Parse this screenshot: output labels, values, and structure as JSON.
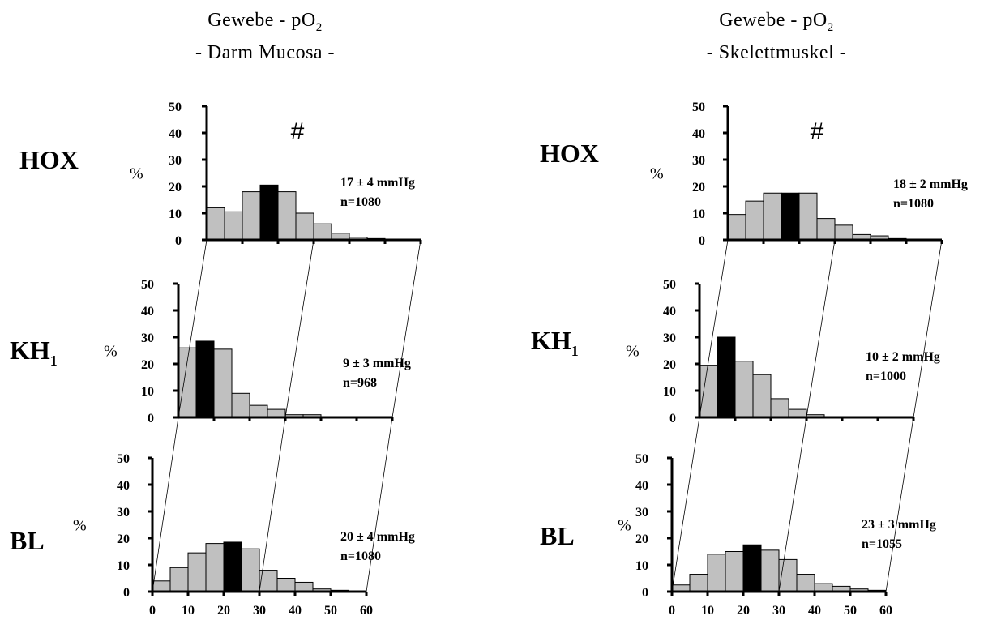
{
  "columns": [
    {
      "title": "Gewebe - pO",
      "title_sub": "2",
      "subtitle": "- Darm Mucosa -"
    },
    {
      "title": "Gewebe - pO",
      "title_sub": "2",
      "subtitle": "- Skelettmuskel -"
    }
  ],
  "percent_label": "%",
  "colors": {
    "bar": "#c0c0c0",
    "median_bar": "#000000",
    "axis": "#000000"
  },
  "chart_data": [
    {
      "type": "bar",
      "column": 0,
      "row_label": "HOX",
      "row_label_sub": "",
      "bin_edges": [
        0,
        5,
        10,
        15,
        20,
        25,
        30,
        35,
        40,
        45,
        50,
        55,
        60
      ],
      "values": [
        12,
        10.5,
        18,
        20.5,
        18,
        10,
        6,
        2.5,
        1,
        0.5,
        0,
        0
      ],
      "median_bin": 3,
      "annotation": "17 ± 4 mmHg",
      "n": "n=1080",
      "marker": "#",
      "y_ticks": [
        0,
        10,
        20,
        30,
        40,
        50
      ],
      "x_ticks": [],
      "ylim": [
        0,
        50
      ],
      "xlim": [
        0,
        60
      ],
      "ylabel": "%"
    },
    {
      "type": "bar",
      "column": 0,
      "row_label": "KH",
      "row_label_sub": "1",
      "bin_edges": [
        0,
        5,
        10,
        15,
        20,
        25,
        30,
        35,
        40,
        45,
        50,
        55,
        60
      ],
      "values": [
        26,
        28.5,
        25.5,
        9,
        4.5,
        3,
        1,
        1,
        0,
        0,
        0,
        0
      ],
      "median_bin": 1,
      "annotation": "9 ± 3 mmHg",
      "n": "n=968",
      "marker": "",
      "y_ticks": [
        0,
        10,
        20,
        30,
        40,
        50
      ],
      "x_ticks": [],
      "ylim": [
        0,
        50
      ],
      "xlim": [
        0,
        60
      ],
      "ylabel": "%"
    },
    {
      "type": "bar",
      "column": 0,
      "row_label": "BL",
      "row_label_sub": "",
      "bin_edges": [
        0,
        5,
        10,
        15,
        20,
        25,
        30,
        35,
        40,
        45,
        50,
        55,
        60
      ],
      "values": [
        4,
        9,
        14.5,
        18,
        18.5,
        16,
        8,
        5,
        3.5,
        1,
        0.5,
        0
      ],
      "median_bin": 4,
      "annotation": "20 ± 4 mmHg",
      "n": "n=1080",
      "marker": "",
      "y_ticks": [
        0,
        10,
        20,
        30,
        40,
        50
      ],
      "x_ticks": [
        0,
        10,
        20,
        30,
        40,
        50,
        60
      ],
      "ylim": [
        0,
        50
      ],
      "xlim": [
        0,
        60
      ],
      "ylabel": "%"
    },
    {
      "type": "bar",
      "column": 1,
      "row_label": "HOX",
      "row_label_sub": "",
      "bin_edges": [
        0,
        5,
        10,
        15,
        20,
        25,
        30,
        35,
        40,
        45,
        50,
        55,
        60
      ],
      "values": [
        9.5,
        14.5,
        17.5,
        17.5,
        17.5,
        8,
        5.5,
        2,
        1.5,
        0.5,
        0.3,
        0
      ],
      "median_bin": 3,
      "annotation": "18 ± 2 mmHg",
      "n": "n=1080",
      "marker": "#",
      "y_ticks": [
        0,
        10,
        20,
        30,
        40,
        50
      ],
      "x_ticks": [],
      "ylim": [
        0,
        50
      ],
      "xlim": [
        0,
        60
      ],
      "ylabel": "%"
    },
    {
      "type": "bar",
      "column": 1,
      "row_label": "KH",
      "row_label_sub": "1",
      "bin_edges": [
        0,
        5,
        10,
        15,
        20,
        25,
        30,
        35,
        40,
        45,
        50,
        55,
        60
      ],
      "values": [
        19.5,
        30,
        21,
        16,
        7,
        3,
        1,
        0.3,
        0,
        0,
        0,
        0
      ],
      "median_bin": 1,
      "annotation": "10 ± 2 mmHg",
      "n": "n=1000",
      "marker": "",
      "y_ticks": [
        0,
        10,
        20,
        30,
        40,
        50
      ],
      "x_ticks": [],
      "ylim": [
        0,
        50
      ],
      "xlim": [
        0,
        60
      ],
      "ylabel": "%"
    },
    {
      "type": "bar",
      "column": 1,
      "row_label": "BL",
      "row_label_sub": "",
      "bin_edges": [
        0,
        5,
        10,
        15,
        20,
        25,
        30,
        35,
        40,
        45,
        50,
        55,
        60
      ],
      "values": [
        2.5,
        6.5,
        14,
        15,
        17.5,
        15.5,
        12,
        6.5,
        3,
        2,
        1,
        0.5
      ],
      "median_bin": 4,
      "annotation": "23 ± 3 mmHg",
      "n": "n=1055",
      "marker": "",
      "y_ticks": [
        0,
        10,
        20,
        30,
        40,
        50
      ],
      "x_ticks": [
        0,
        10,
        20,
        30,
        40,
        50,
        60
      ],
      "ylim": [
        0,
        50
      ],
      "xlim": [
        0,
        60
      ],
      "ylabel": "%"
    }
  ]
}
